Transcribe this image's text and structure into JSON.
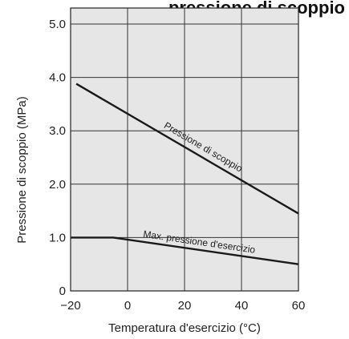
{
  "chart_data": {
    "type": "line",
    "title": "...pressione di scoppio",
    "xlabel": "Temperatura d'esercizio  (°C)",
    "ylabel": "Pressione di scoppio (MPa)",
    "xlim": [
      -20,
      60
    ],
    "ylim": [
      0,
      5.3
    ],
    "grid": true,
    "xticks": [
      -20,
      0,
      20,
      40,
      60
    ],
    "xtick_labels": [
      "−20",
      "0",
      "20",
      "40",
      "60"
    ],
    "yticks": [
      0,
      1.0,
      2.0,
      3.0,
      4.0,
      5.0
    ],
    "ytick_labels": [
      "0",
      "1.0",
      "2.0",
      "3.0",
      "4.0",
      "5.0"
    ],
    "series": [
      {
        "name": "Pressione di scoppio",
        "x": [
          -18,
          60
        ],
        "y": [
          3.88,
          1.45
        ]
      },
      {
        "name": "Max. pressione d'esercizio",
        "x": [
          -20,
          -5,
          60
        ],
        "y": [
          1.0,
          1.0,
          0.5
        ]
      }
    ],
    "annotations": [
      {
        "text": "Pressione di scoppio",
        "series": 0
      },
      {
        "text": "Max. pressione d'esercizio",
        "series": 1
      }
    ]
  }
}
